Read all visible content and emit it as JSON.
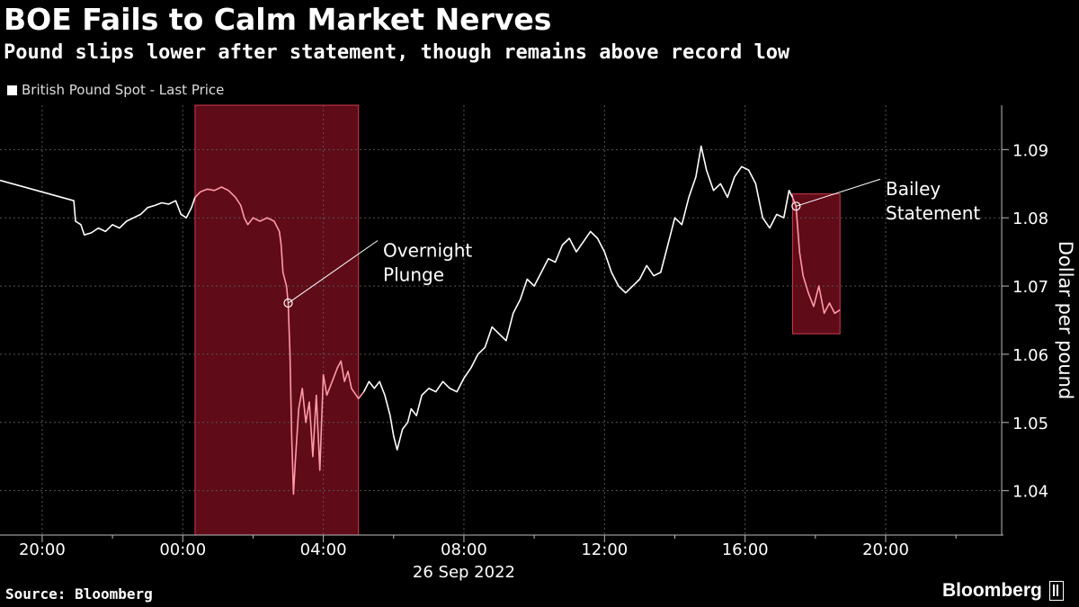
{
  "header": {
    "title": "BOE Fails to Calm Market Nerves",
    "subtitle": "Pound slips lower after statement, though remains above record low"
  },
  "footer": {
    "source": "Source: Bloomberg",
    "brand": "Bloomberg"
  },
  "colors": {
    "background": "#000000",
    "line": "#ffffff",
    "highlight_line": "#ff9aa8",
    "highlight_fill": "#5f0b18",
    "highlight_border": "#d23a4d",
    "grid": "#555555"
  },
  "chart_data": {
    "type": "line",
    "legend": "British Pound Spot - Last Price",
    "ylabel": "Dollar per pound",
    "xlabel": "26 Sep 2022",
    "x_unit": "hours relative to 00:00, 26 Sep 2022",
    "xlim": [
      -5.2,
      23.3
    ],
    "ylim": [
      1.0335,
      1.0965
    ],
    "y_ticks": [
      1.04,
      1.05,
      1.06,
      1.07,
      1.08,
      1.09
    ],
    "x_ticks": [
      {
        "t": -4,
        "label": "20:00"
      },
      {
        "t": 0,
        "label": "00:00"
      },
      {
        "t": 4,
        "label": "04:00"
      },
      {
        "t": 8,
        "label": "08:00"
      },
      {
        "t": 12,
        "label": "12:00"
      },
      {
        "t": 16,
        "label": "16:00"
      },
      {
        "t": 20,
        "label": "20:00"
      }
    ],
    "grid": true,
    "highlights": [
      {
        "x_start": 0.35,
        "x_end": 5.0,
        "y_start": 1.0335,
        "y_end": 1.0965
      },
      {
        "x_start": 17.35,
        "x_end": 18.7,
        "y_start": 1.063,
        "y_end": 1.0835
      }
    ],
    "annotations": [
      {
        "label_lines": [
          "Overnight",
          "Plunge"
        ],
        "x": 3.0,
        "y": 1.0675,
        "label_x": 5.7,
        "label_y": 1.0735
      },
      {
        "label_lines": [
          "Bailey",
          "Statement"
        ],
        "x": 17.45,
        "y": 1.0817,
        "label_x": 20.0,
        "label_y": 1.0825
      }
    ],
    "series": [
      {
        "points": [
          [
            -5.2,
            1.0855
          ],
          [
            -3.1,
            1.0825
          ],
          [
            -3.05,
            1.0795
          ],
          [
            -2.9,
            1.079
          ],
          [
            -2.8,
            1.0775
          ],
          [
            -2.6,
            1.0778
          ],
          [
            -2.4,
            1.0785
          ],
          [
            -2.2,
            1.078
          ],
          [
            -2.0,
            1.079
          ],
          [
            -1.8,
            1.0785
          ],
          [
            -1.6,
            1.0795
          ],
          [
            -1.4,
            1.08
          ],
          [
            -1.2,
            1.0805
          ],
          [
            -1.0,
            1.0815
          ],
          [
            -0.8,
            1.0818
          ],
          [
            -0.6,
            1.0822
          ],
          [
            -0.4,
            1.082
          ],
          [
            -0.2,
            1.0825
          ],
          [
            -0.05,
            1.0805
          ],
          [
            0.1,
            1.08
          ],
          [
            0.25,
            1.0815
          ],
          [
            0.35,
            1.083
          ],
          [
            0.5,
            1.0838
          ],
          [
            0.7,
            1.0842
          ],
          [
            0.9,
            1.084
          ],
          [
            1.1,
            1.0845
          ],
          [
            1.3,
            1.084
          ],
          [
            1.5,
            1.083
          ],
          [
            1.65,
            1.0818
          ],
          [
            1.75,
            1.08
          ],
          [
            1.85,
            1.079
          ],
          [
            2.0,
            1.08
          ],
          [
            2.2,
            1.0795
          ],
          [
            2.4,
            1.08
          ],
          [
            2.6,
            1.0795
          ],
          [
            2.75,
            1.078
          ],
          [
            2.8,
            1.076
          ],
          [
            2.85,
            1.072
          ],
          [
            2.95,
            1.07
          ],
          [
            3.0,
            1.0675
          ],
          [
            3.05,
            1.06
          ],
          [
            3.1,
            1.048
          ],
          [
            3.15,
            1.0395
          ],
          [
            3.2,
            1.044
          ],
          [
            3.3,
            1.052
          ],
          [
            3.4,
            1.055
          ],
          [
            3.5,
            1.05
          ],
          [
            3.6,
            1.053
          ],
          [
            3.7,
            1.045
          ],
          [
            3.8,
            1.054
          ],
          [
            3.9,
            1.043
          ],
          [
            4.0,
            1.057
          ],
          [
            4.1,
            1.054
          ],
          [
            4.25,
            1.056
          ],
          [
            4.4,
            1.058
          ],
          [
            4.5,
            1.059
          ],
          [
            4.6,
            1.056
          ],
          [
            4.7,
            1.0575
          ],
          [
            4.8,
            1.055
          ],
          [
            5.0,
            1.0535
          ],
          [
            5.15,
            1.0545
          ],
          [
            5.3,
            1.056
          ],
          [
            5.45,
            1.055
          ],
          [
            5.6,
            1.056
          ],
          [
            5.75,
            1.054
          ],
          [
            5.9,
            1.051
          ],
          [
            6.0,
            1.048
          ],
          [
            6.1,
            1.046
          ],
          [
            6.25,
            1.049
          ],
          [
            6.4,
            1.05
          ],
          [
            6.5,
            1.052
          ],
          [
            6.65,
            1.051
          ],
          [
            6.8,
            1.054
          ],
          [
            7.0,
            1.055
          ],
          [
            7.2,
            1.0545
          ],
          [
            7.4,
            1.056
          ],
          [
            7.6,
            1.055
          ],
          [
            7.8,
            1.0545
          ],
          [
            8.0,
            1.0565
          ],
          [
            8.2,
            1.058
          ],
          [
            8.4,
            1.06
          ],
          [
            8.6,
            1.061
          ],
          [
            8.8,
            1.064
          ],
          [
            9.0,
            1.063
          ],
          [
            9.2,
            1.062
          ],
          [
            9.4,
            1.066
          ],
          [
            9.6,
            1.068
          ],
          [
            9.8,
            1.071
          ],
          [
            10.0,
            1.07
          ],
          [
            10.2,
            1.072
          ],
          [
            10.4,
            1.074
          ],
          [
            10.6,
            1.0735
          ],
          [
            10.8,
            1.076
          ],
          [
            11.0,
            1.077
          ],
          [
            11.2,
            1.075
          ],
          [
            11.4,
            1.0765
          ],
          [
            11.6,
            1.078
          ],
          [
            11.8,
            1.077
          ],
          [
            12.0,
            1.075
          ],
          [
            12.2,
            1.072
          ],
          [
            12.4,
            1.07
          ],
          [
            12.6,
            1.069
          ],
          [
            12.8,
            1.07
          ],
          [
            13.0,
            1.071
          ],
          [
            13.2,
            1.073
          ],
          [
            13.4,
            1.0715
          ],
          [
            13.6,
            1.072
          ],
          [
            13.8,
            1.076
          ],
          [
            14.0,
            1.08
          ],
          [
            14.2,
            1.079
          ],
          [
            14.4,
            1.083
          ],
          [
            14.6,
            1.086
          ],
          [
            14.75,
            1.0905
          ],
          [
            14.9,
            1.087
          ],
          [
            15.1,
            1.084
          ],
          [
            15.3,
            1.085
          ],
          [
            15.5,
            1.083
          ],
          [
            15.7,
            1.086
          ],
          [
            15.9,
            1.0875
          ],
          [
            16.1,
            1.087
          ],
          [
            16.3,
            1.085
          ],
          [
            16.5,
            1.08
          ],
          [
            16.7,
            1.0785
          ],
          [
            16.9,
            1.0805
          ],
          [
            17.1,
            1.08
          ],
          [
            17.25,
            1.084
          ],
          [
            17.35,
            1.083
          ],
          [
            17.45,
            1.0817
          ],
          [
            17.55,
            1.075
          ],
          [
            17.65,
            1.0715
          ],
          [
            17.8,
            1.069
          ],
          [
            17.95,
            1.067
          ],
          [
            18.1,
            1.07
          ],
          [
            18.25,
            1.066
          ],
          [
            18.4,
            1.0675
          ],
          [
            18.55,
            1.066
          ],
          [
            18.7,
            1.0665
          ]
        ],
        "highlight_ranges": [
          [
            0.35,
            5.0
          ],
          [
            17.35,
            18.7
          ]
        ]
      }
    ]
  }
}
